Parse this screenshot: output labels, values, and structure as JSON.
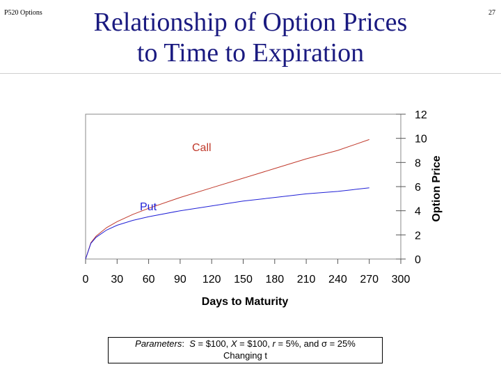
{
  "slide": {
    "corner_label": "P520 Options",
    "page_number": "27",
    "title_line1": "Relationship of Option Prices",
    "title_line2": "to Time to Expiration",
    "params_label": "Parameters",
    "params_s": "S",
    "params_s_val": " = $100, ",
    "params_x": "X",
    "params_x_val": " = $100, ",
    "params_r": "r",
    "params_r_val": " = 5%, and σ = 25%",
    "params_line2": "Changing t"
  },
  "colors": {
    "call": "#c0392b",
    "put": "#1f1fd6",
    "axis": "#555555",
    "title": "#1a1a80"
  },
  "chart_data": {
    "type": "line",
    "xlabel": "Days to Maturity",
    "ylabel": "Option Price",
    "xlim": [
      0,
      300
    ],
    "ylim": [
      0,
      12
    ],
    "xticks": [
      0,
      30,
      60,
      90,
      120,
      150,
      180,
      210,
      240,
      270,
      300
    ],
    "yticks": [
      0,
      2,
      4,
      6,
      8,
      10,
      12
    ],
    "y_axis_position": "right",
    "grid": false,
    "series": [
      {
        "name": "Call",
        "x": [
          0,
          5,
          10,
          20,
          30,
          45,
          60,
          90,
          120,
          150,
          180,
          210,
          240,
          270
        ],
        "y": [
          0,
          1.35,
          1.9,
          2.6,
          3.1,
          3.7,
          4.2,
          5.1,
          5.9,
          6.7,
          7.5,
          8.3,
          9.0,
          9.9
        ]
      },
      {
        "name": "Put",
        "x": [
          0,
          5,
          10,
          20,
          30,
          45,
          60,
          90,
          120,
          150,
          180,
          210,
          240,
          270
        ],
        "y": [
          0,
          1.3,
          1.8,
          2.4,
          2.8,
          3.2,
          3.5,
          4.0,
          4.4,
          4.8,
          5.1,
          5.4,
          5.6,
          5.9
        ]
      }
    ]
  }
}
